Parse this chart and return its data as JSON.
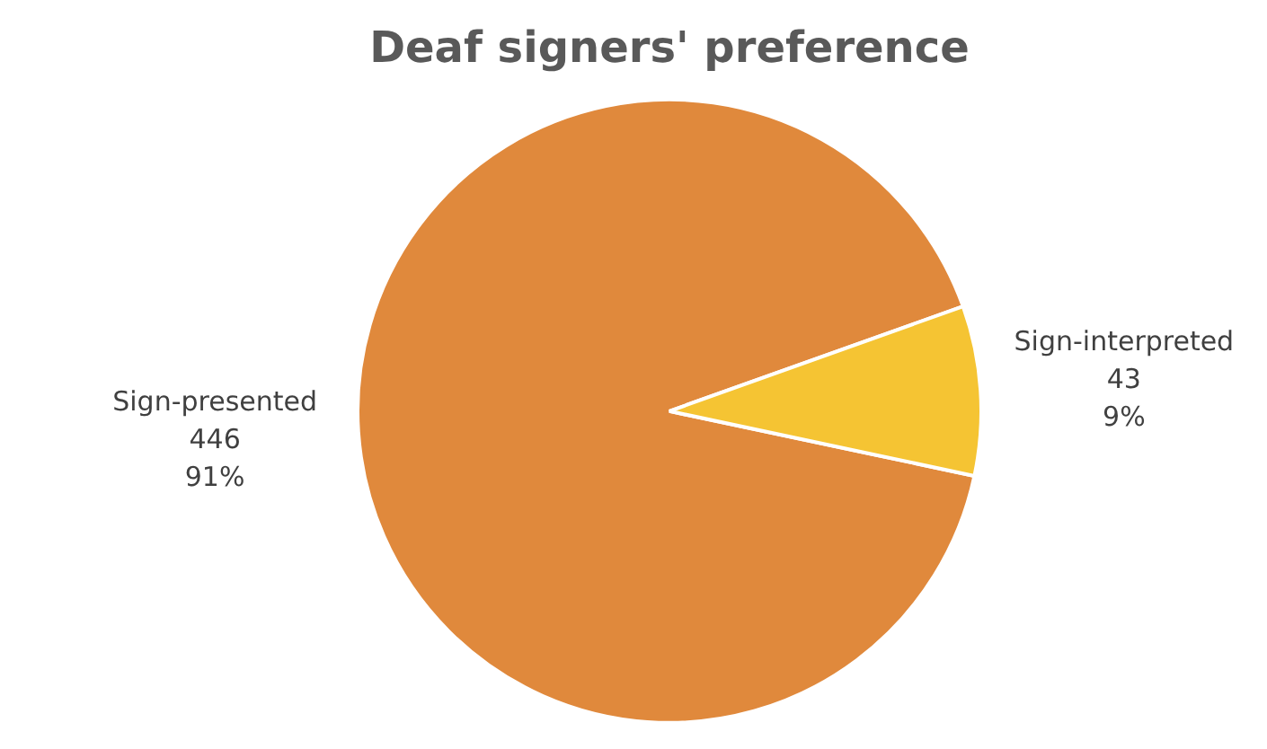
{
  "chart_data": {
    "type": "pie",
    "title": "Deaf signers' preference",
    "categories": [
      "Sign-presented",
      "Sign-interpreted"
    ],
    "values": [
      446,
      43
    ],
    "colors": [
      "#e0893c",
      "#f5c433"
    ],
    "value_labels": [
      "446\n91%",
      "43\n9%"
    ],
    "legend": false
  }
}
